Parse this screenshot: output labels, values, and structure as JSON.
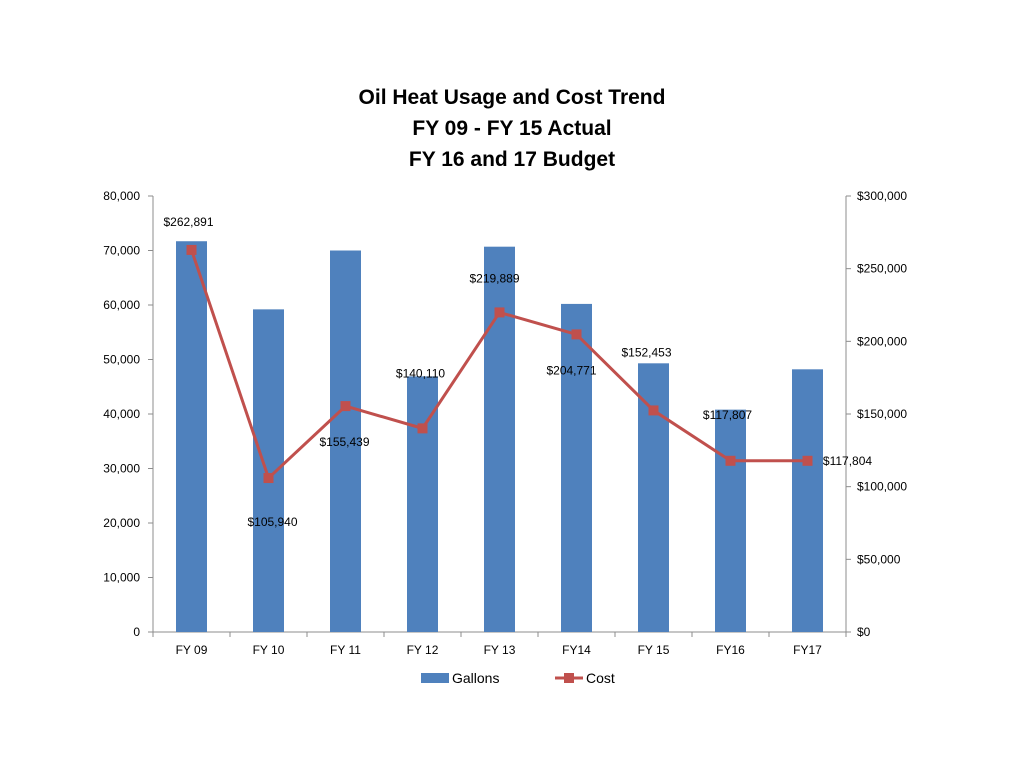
{
  "chart_data": {
    "type": "bar+line",
    "title_lines": [
      "Oil Heat Usage and Cost Trend",
      "FY 09 - FY 15 Actual",
      "FY 16 and 17 Budget"
    ],
    "categories": [
      "FY 09",
      "FY 10",
      "FY 11",
      "FY 12",
      "FY 13",
      "FY14",
      "FY 15",
      "FY16",
      "FY17"
    ],
    "series": [
      {
        "name": "Gallons",
        "type": "bar",
        "axis": "left",
        "color": "#4f81bd",
        "values": [
          71700,
          59200,
          70000,
          46900,
          70700,
          60200,
          49300,
          40800,
          48200
        ]
      },
      {
        "name": "Cost",
        "type": "line",
        "axis": "right",
        "color": "#c0504d",
        "values": [
          262891,
          105940,
          155439,
          140110,
          219889,
          204771,
          152453,
          117807,
          117804
        ],
        "labels": [
          "$262,891",
          "$105,940",
          "$155,439",
          "$140,110",
          "$219,889",
          "$204,771",
          "$152,453",
          "$117,807",
          "$117,804"
        ]
      }
    ],
    "left_axis": {
      "ylim": [
        0,
        80000
      ],
      "ticks": [
        0,
        10000,
        20000,
        30000,
        40000,
        50000,
        60000,
        70000,
        80000
      ],
      "tick_labels": [
        "0",
        "10,000",
        "20,000",
        "30,000",
        "40,000",
        "50,000",
        "60,000",
        "70,000",
        "80,000"
      ]
    },
    "right_axis": {
      "ylim": [
        0,
        300000
      ],
      "ticks": [
        0,
        50000,
        100000,
        150000,
        200000,
        250000,
        300000
      ],
      "tick_labels": [
        "$0",
        "$50,000",
        "$100,000",
        "$150,000",
        "$200,000",
        "$250,000",
        "$300,000"
      ]
    },
    "grid": false,
    "legend_position": "bottom"
  }
}
